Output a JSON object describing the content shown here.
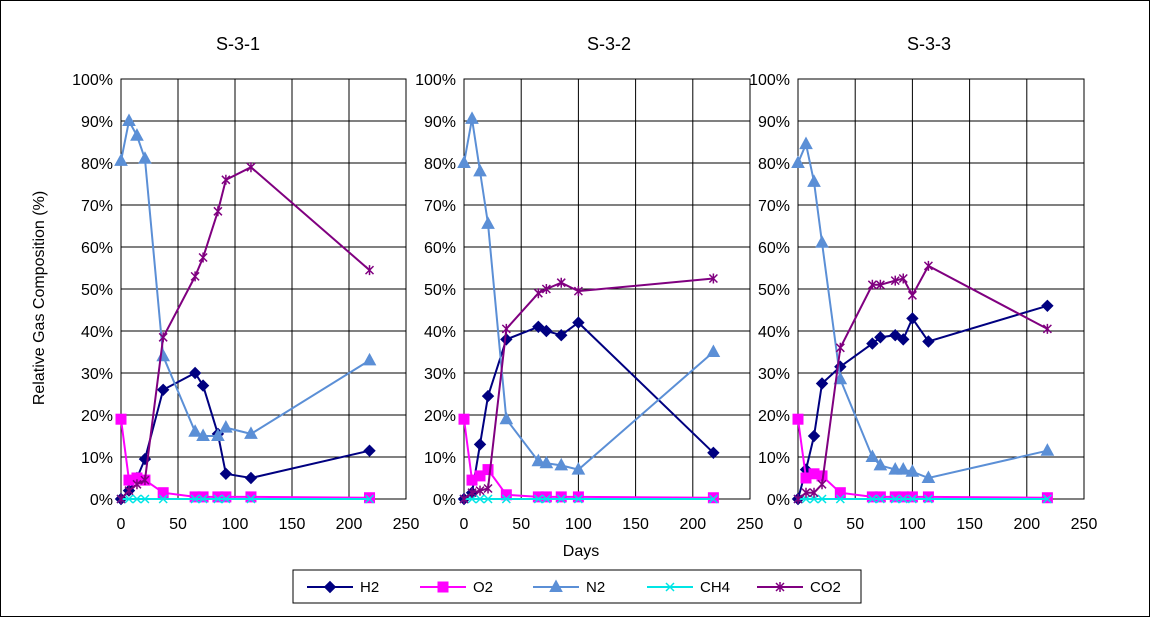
{
  "chart_data": {
    "type": "line",
    "ylabel": "Relative Gas Composition (%)",
    "xlabel": "Days",
    "ylim": [
      0,
      100
    ],
    "xlim": [
      0,
      250
    ],
    "y_ticks": [
      "0%",
      "10%",
      "20%",
      "30%",
      "40%",
      "50%",
      "60%",
      "70%",
      "80%",
      "90%",
      "100%"
    ],
    "x_ticks": [
      "0",
      "50",
      "100",
      "150",
      "200",
      "250"
    ],
    "grid": true,
    "legend_position": "bottom",
    "legend": [
      "H2",
      "O2",
      "N2",
      "CH4",
      "CO2"
    ],
    "series_styles": [
      {
        "name": "H2",
        "color": "#000080",
        "marker": "diamond"
      },
      {
        "name": "O2",
        "color": "#ff00ff",
        "marker": "square"
      },
      {
        "name": "N2",
        "color": "#5b8fd6",
        "marker": "triangle"
      },
      {
        "name": "CH4",
        "color": "#00e5e5",
        "marker": "x"
      },
      {
        "name": "CO2",
        "color": "#800080",
        "marker": "star"
      }
    ],
    "panels": [
      {
        "title": "S-3-1",
        "series": [
          {
            "name": "H2",
            "x": [
              0,
              7,
              14,
              21,
              37,
              65,
              72,
              85,
              92,
              114,
              218
            ],
            "y": [
              0,
              2,
              5,
              9.5,
              26,
              30,
              27,
              15.5,
              6,
              5,
              11.5
            ]
          },
          {
            "name": "O2",
            "x": [
              0,
              7,
              14,
              21,
              37,
              65,
              72,
              85,
              92,
              114,
              218
            ],
            "y": [
              19,
              4.5,
              5,
              4.5,
              1.5,
              0.5,
              0.5,
              0.5,
              0.5,
              0.5,
              0.3
            ]
          },
          {
            "name": "N2",
            "x": [
              0,
              7,
              14,
              21,
              37,
              65,
              72,
              85,
              92,
              114,
              218
            ],
            "y": [
              80.5,
              90,
              86.5,
              81,
              34,
              16,
              15,
              15,
              17,
              15.5,
              33
            ]
          },
          {
            "name": "CH4",
            "x": [
              0,
              7,
              14,
              21,
              37,
              65,
              72,
              85,
              92,
              114,
              218
            ],
            "y": [
              0,
              0,
              0,
              0,
              0,
              0,
              0,
              0,
              0,
              0,
              0
            ]
          },
          {
            "name": "CO2",
            "x": [
              0,
              7,
              14,
              21,
              37,
              65,
              72,
              85,
              92,
              114,
              218
            ],
            "y": [
              0,
              2,
              3.5,
              4.5,
              38.5,
              53,
              57.5,
              68.5,
              76,
              79,
              54.5
            ]
          }
        ]
      },
      {
        "title": "S-3-2",
        "series": [
          {
            "name": "H2",
            "x": [
              0,
              7,
              14,
              21,
              37,
              65,
              72,
              85,
              100,
              218
            ],
            "y": [
              0,
              1.5,
              13,
              24.5,
              38,
              41,
              40,
              39,
              42,
              11
            ]
          },
          {
            "name": "O2",
            "x": [
              0,
              7,
              14,
              21,
              37,
              65,
              72,
              85,
              100,
              218
            ],
            "y": [
              19,
              4.5,
              5.5,
              7,
              1,
              0.5,
              0.5,
              0.5,
              0.5,
              0.3
            ]
          },
          {
            "name": "N2",
            "x": [
              0,
              7,
              14,
              21,
              37,
              65,
              72,
              85,
              100,
              218
            ],
            "y": [
              80,
              90.5,
              78,
              65.5,
              19,
              9,
              8.5,
              8,
              7,
              35
            ]
          },
          {
            "name": "CH4",
            "x": [
              0,
              7,
              14,
              21,
              37,
              65,
              72,
              85,
              100,
              218
            ],
            "y": [
              0,
              0,
              0,
              0,
              0,
              0,
              0,
              0,
              0,
              0
            ]
          },
          {
            "name": "CO2",
            "x": [
              0,
              7,
              14,
              21,
              37,
              65,
              72,
              85,
              100,
              218
            ],
            "y": [
              0,
              1.5,
              2,
              2.5,
              40.5,
              49,
              50,
              51.5,
              49.5,
              52.5
            ]
          }
        ]
      },
      {
        "title": "S-3-3",
        "series": [
          {
            "name": "H2",
            "x": [
              0,
              7,
              14,
              21,
              37,
              65,
              72,
              85,
              92,
              100,
              114,
              218
            ],
            "y": [
              0,
              7,
              15,
              27.5,
              31.5,
              37,
              38.5,
              39,
              38,
              43,
              37.5,
              46
            ]
          },
          {
            "name": "O2",
            "x": [
              0,
              7,
              14,
              21,
              37,
              65,
              72,
              85,
              92,
              100,
              114,
              218
            ],
            "y": [
              19,
              5,
              6,
              5.5,
              1.5,
              0.5,
              0.5,
              0.5,
              0.5,
              0.5,
              0.5,
              0.3
            ]
          },
          {
            "name": "N2",
            "x": [
              0,
              7,
              14,
              21,
              37,
              65,
              72,
              85,
              92,
              100,
              114,
              218
            ],
            "y": [
              80,
              84.5,
              75.5,
              61,
              28.5,
              10,
              8,
              7,
              7,
              6.5,
              5,
              11.5
            ]
          },
          {
            "name": "CH4",
            "x": [
              0,
              7,
              14,
              21,
              37,
              65,
              72,
              85,
              92,
              100,
              114,
              218
            ],
            "y": [
              0,
              0,
              0,
              0,
              0,
              0,
              0,
              0,
              0,
              0,
              0,
              0
            ]
          },
          {
            "name": "CO2",
            "x": [
              0,
              7,
              14,
              21,
              37,
              65,
              72,
              85,
              92,
              100,
              114,
              218
            ],
            "y": [
              0,
              1.5,
              1.5,
              3.5,
              36,
              51,
              51,
              52,
              52.5,
              48.5,
              55.5,
              40.5
            ]
          }
        ]
      }
    ]
  }
}
